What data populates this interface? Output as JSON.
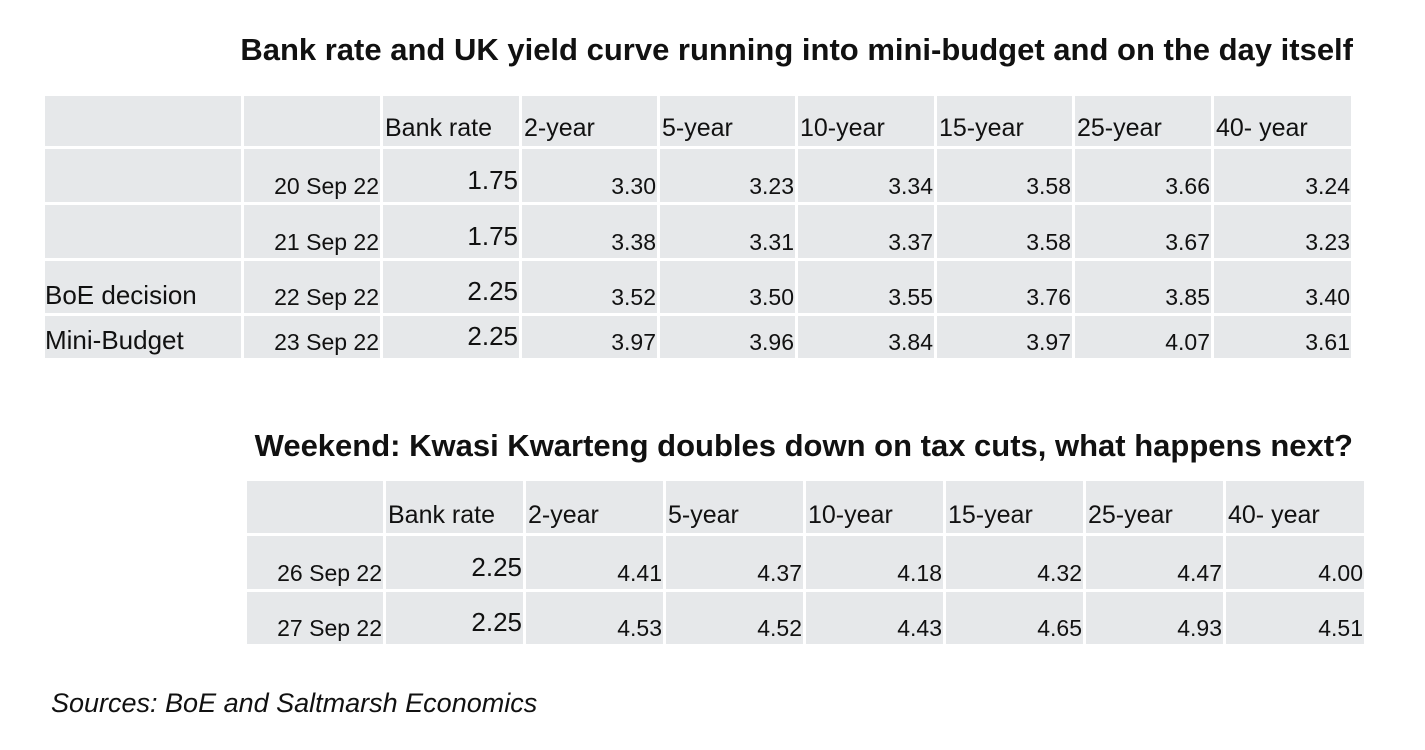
{
  "table1": {
    "title": "Bank rate and UK yield curve running into mini-budget and on the day itself",
    "headers": [
      "Bank rate",
      "2-year",
      "5-year",
      "10-year",
      "15-year",
      "25-year",
      "40- year"
    ],
    "rows": [
      {
        "label": "",
        "date": "20 Sep 22",
        "bank_rate": "1.75",
        "values": [
          "3.30",
          "3.23",
          "3.34",
          "3.58",
          "3.66",
          "3.24"
        ]
      },
      {
        "label": "",
        "date": "21 Sep 22",
        "bank_rate": "1.75",
        "values": [
          "3.38",
          "3.31",
          "3.37",
          "3.58",
          "3.67",
          "3.23"
        ]
      },
      {
        "label": "BoE decision",
        "date": "22 Sep 22",
        "bank_rate": "2.25",
        "values": [
          "3.52",
          "3.50",
          "3.55",
          "3.76",
          "3.85",
          "3.40"
        ]
      },
      {
        "label": "Mini-Budget",
        "date": "23 Sep 22",
        "bank_rate": "2.25",
        "values": [
          "3.97",
          "3.96",
          "3.84",
          "3.97",
          "4.07",
          "3.61"
        ]
      }
    ]
  },
  "table2": {
    "title": "Weekend: Kwasi Kwarteng doubles down on tax cuts, what happens next?",
    "headers": [
      "Bank rate",
      "2-year",
      "5-year",
      "10-year",
      "15-year",
      "25-year",
      "40- year"
    ],
    "rows": [
      {
        "date": "26 Sep 22",
        "bank_rate": "2.25",
        "values": [
          "4.41",
          "4.37",
          "4.18",
          "4.32",
          "4.47",
          "4.00"
        ]
      },
      {
        "date": "27 Sep 22",
        "bank_rate": "2.25",
        "values": [
          "4.53",
          "4.52",
          "4.43",
          "4.65",
          "4.93",
          "4.51"
        ]
      }
    ]
  },
  "footer": {
    "source": "Sources: BoE and Saltmarsh Economics"
  }
}
